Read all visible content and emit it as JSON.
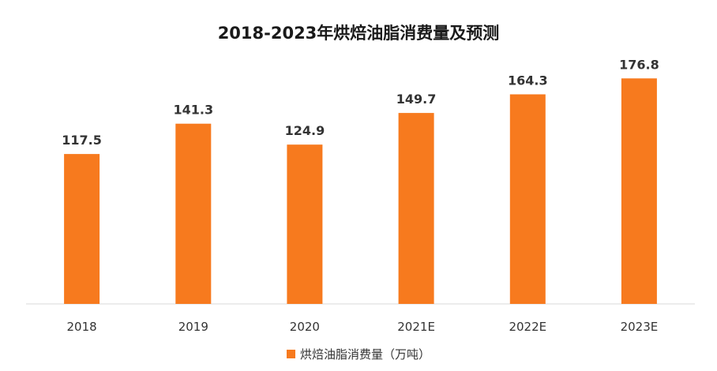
{
  "chart_data": {
    "type": "bar",
    "title": "2018-2023年烘焙油脂消费量及预测",
    "categories": [
      "2018",
      "2019",
      "2020",
      "2021E",
      "2022E",
      "2023E"
    ],
    "series": [
      {
        "name": "烘焙油脂消费量（万吨）",
        "values": [
          117.5,
          141.3,
          124.9,
          149.7,
          164.3,
          176.8
        ],
        "labels": [
          "117.5",
          "141.3",
          "124.9",
          "149.7",
          "164.3",
          "176.8"
        ],
        "color": "#F77A1E"
      }
    ],
    "ylim": [
      0,
      190
    ],
    "grid": false,
    "legend_position": "bottom"
  }
}
